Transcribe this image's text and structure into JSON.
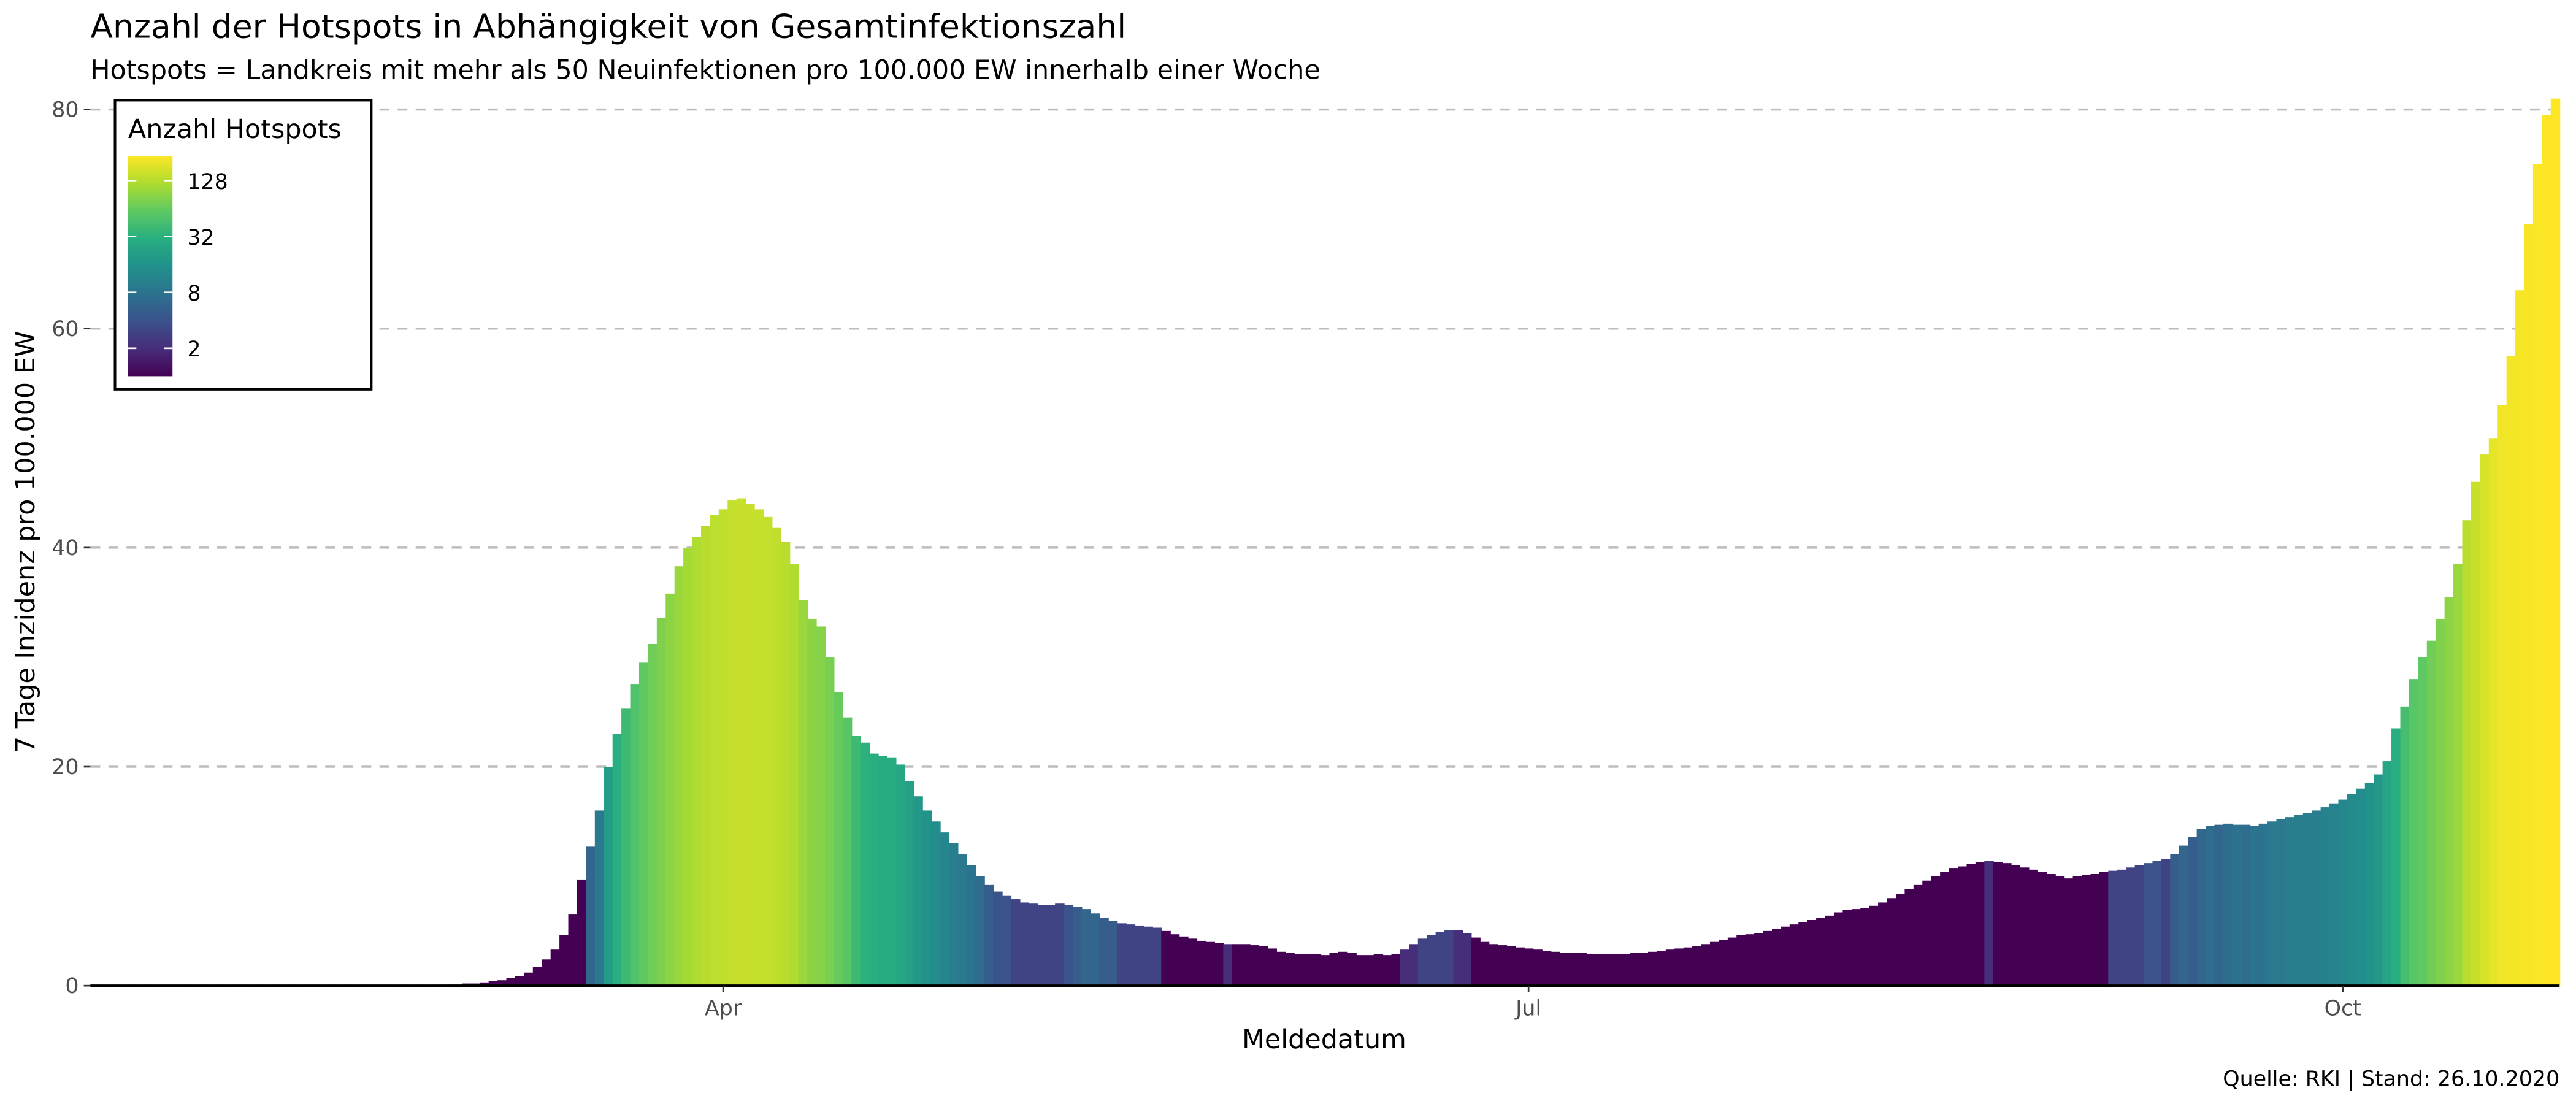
{
  "chart_data": {
    "type": "bar",
    "title": "Anzahl der Hotspots in Abhängigkeit von Gesamtinfektionszahl",
    "subtitle": "Hotspots = Landkreis mit mehr als 50 Neuinfektionen pro 100.000 EW innerhalb einer Woche",
    "x_label": "Meldedatum",
    "y_label": "7 Tage Inzidenz pro 100.000 EW",
    "caption": "Quelle: RKI | Stand: 26.10.2020",
    "legend_title": "Anzahl Hotspots",
    "categories": [
      null,
      null,
      null,
      null,
      null,
      null,
      null,
      null,
      null,
      null,
      null,
      null,
      null,
      null,
      null,
      null,
      null,
      null,
      null,
      null,
      null,
      null,
      null,
      null,
      null,
      null,
      null,
      null,
      null,
      null,
      null,
      null,
      null,
      null,
      null,
      null,
      null,
      null,
      null,
      null,
      null,
      null,
      null,
      null,
      null,
      null,
      null,
      null,
      null,
      null,
      null,
      null,
      null,
      null,
      null,
      null,
      null,
      null,
      null,
      null,
      null,
      null,
      null,
      null,
      null,
      null,
      null,
      null,
      null,
      null,
      null,
      "Apr",
      null,
      null,
      null,
      null,
      null,
      null,
      null,
      null,
      null,
      null,
      null,
      null,
      null,
      null,
      null,
      null,
      null,
      null,
      null,
      null,
      null,
      null,
      null,
      null,
      null,
      null,
      null,
      null,
      null,
      null,
      null,
      null,
      null,
      null,
      null,
      null,
      null,
      null,
      null,
      null,
      null,
      null,
      null,
      null,
      null,
      null,
      null,
      null,
      null,
      null,
      null,
      null,
      null,
      null,
      null,
      null,
      null,
      null,
      null,
      null,
      null,
      null,
      null,
      null,
      null,
      null,
      null,
      null,
      null,
      null,
      null,
      null,
      null,
      null,
      null,
      null,
      null,
      null,
      null,
      null,
      null,
      null,
      null,
      null,
      null,
      null,
      null,
      null,
      null,
      null,
      "Jul",
      null,
      null,
      null,
      null,
      null,
      null,
      null,
      null,
      null,
      null,
      null,
      null,
      null,
      null,
      null,
      null,
      null,
      null,
      null,
      null,
      null,
      null,
      null,
      null,
      null,
      null,
      null,
      null,
      null,
      null,
      null,
      null,
      null,
      null,
      null,
      null,
      null,
      null,
      null,
      null,
      null,
      null,
      null,
      null,
      null,
      null,
      null,
      null,
      null,
      null,
      null,
      null,
      null,
      null,
      null,
      null,
      null,
      null,
      null,
      null,
      null,
      null,
      null,
      null,
      null,
      null,
      null,
      null,
      null,
      null,
      null,
      null,
      null,
      null,
      null,
      null,
      null,
      null,
      null,
      null,
      null,
      null,
      null,
      null,
      null,
      null,
      null,
      null,
      null,
      null,
      null,
      "Oct",
      null,
      null,
      null,
      null,
      null,
      null,
      null,
      null,
      null,
      null,
      null,
      null,
      null,
      null,
      null,
      null,
      null,
      null,
      null,
      null,
      null,
      null,
      null,
      null
    ],
    "values": [
      0,
      0,
      0,
      0,
      0,
      0,
      0,
      0,
      0,
      0,
      0,
      0,
      0,
      0,
      0,
      0,
      0,
      0,
      0,
      0,
      0,
      0,
      0,
      0,
      0,
      0,
      0,
      0,
      0,
      0,
      0,
      0,
      0,
      0,
      0,
      0,
      0,
      0,
      0,
      0,
      0.1,
      0.1,
      0.2,
      0.2,
      0.3,
      0.4,
      0.5,
      0.7,
      0.9,
      1.2,
      1.7,
      2.4,
      3.3,
      4.6,
      6.5,
      9.7,
      12.7,
      16,
      20,
      23,
      25.3,
      27.5,
      29.5,
      31.2,
      33.6,
      35.8,
      38.3,
      40,
      41,
      42,
      43,
      43.5,
      44.3,
      44.5,
      44,
      43.5,
      42.8,
      41.8,
      40.5,
      38.5,
      35.2,
      33.5,
      32.8,
      30,
      26.8,
      24.5,
      22.8,
      22.2,
      21.2,
      21,
      20.8,
      20.2,
      18.7,
      17.3,
      16,
      15,
      14,
      13,
      12,
      11,
      10,
      9.2,
      8.6,
      8.2,
      7.9,
      7.6,
      7.5,
      7.4,
      7.4,
      7.5,
      7.4,
      7.2,
      7,
      6.6,
      6.2,
      5.9,
      5.7,
      5.6,
      5.5,
      5.4,
      5.3,
      5,
      4.7,
      4.5,
      4.3,
      4.1,
      4,
      3.9,
      3.8,
      3.8,
      3.8,
      3.7,
      3.6,
      3.4,
      3.1,
      3,
      2.9,
      2.9,
      2.9,
      2.8,
      3,
      3.1,
      3,
      2.8,
      2.8,
      2.9,
      2.8,
      2.9,
      3.3,
      3.8,
      4.3,
      4.6,
      4.9,
      5.1,
      5.1,
      4.8,
      4.4,
      4,
      3.8,
      3.7,
      3.6,
      3.5,
      3.4,
      3.3,
      3.2,
      3.1,
      3,
      3,
      3,
      2.9,
      2.9,
      2.9,
      2.9,
      2.9,
      3,
      3,
      3.1,
      3.2,
      3.3,
      3.4,
      3.5,
      3.6,
      3.8,
      4,
      4.2,
      4.4,
      4.6,
      4.7,
      4.8,
      5,
      5.2,
      5.4,
      5.6,
      5.8,
      6,
      6.2,
      6.4,
      6.7,
      6.9,
      7,
      7.1,
      7.3,
      7.6,
      8,
      8.4,
      8.8,
      9.2,
      9.6,
      10,
      10.4,
      10.7,
      10.9,
      11.1,
      11.3,
      11.4,
      11.3,
      11.2,
      11,
      10.8,
      10.6,
      10.4,
      10.2,
      10,
      9.8,
      10,
      10.1,
      10.2,
      10.4,
      10.5,
      10.6,
      10.8,
      11,
      11.2,
      11.4,
      11.6,
      12,
      12.8,
      13.6,
      14.3,
      14.6,
      14.7,
      14.8,
      14.7,
      14.7,
      14.6,
      14.8,
      15,
      15.2,
      15.4,
      15.6,
      15.8,
      16,
      16.3,
      16.6,
      17,
      17.5,
      18,
      18.5,
      19.3,
      20.5,
      23.5,
      25.5,
      28,
      30,
      31.5,
      33.5,
      35.5,
      38.5,
      42.5,
      46,
      48.5,
      50,
      53,
      57.5,
      63.5,
      69.5,
      75,
      79.5,
      81
    ],
    "color_values": [
      0,
      0,
      0,
      0,
      0,
      0,
      0,
      0,
      0,
      0,
      0,
      0,
      0,
      0,
      0,
      0,
      0,
      0,
      0,
      0,
      0,
      0,
      0,
      0,
      0,
      0,
      0,
      0,
      0,
      0,
      0,
      0,
      0,
      0,
      0,
      0,
      0,
      0,
      0,
      0,
      0,
      0,
      0,
      0,
      0,
      0,
      0,
      0,
      0,
      0,
      0,
      0,
      0,
      0,
      0,
      1,
      6,
      9,
      20,
      30,
      40,
      50,
      60,
      70,
      80,
      90,
      100,
      110,
      120,
      130,
      135,
      140,
      145,
      150,
      150,
      148,
      145,
      140,
      130,
      120,
      100,
      90,
      85,
      75,
      65,
      55,
      40,
      32,
      30,
      28,
      28,
      26,
      22,
      18,
      16,
      14,
      12,
      10,
      9,
      8,
      7,
      5,
      4,
      4,
      3,
      3,
      3,
      3,
      3,
      3,
      4,
      5,
      6,
      6,
      5,
      5,
      3,
      3,
      3,
      3,
      3,
      1,
      1,
      0,
      0,
      0,
      0,
      0,
      2,
      0,
      0,
      0,
      0,
      0,
      0,
      0,
      0,
      0,
      0,
      0,
      0,
      0,
      0,
      0,
      0,
      0,
      0,
      0,
      2,
      2,
      3,
      3,
      3,
      3,
      2,
      2,
      0,
      0,
      0,
      0,
      0,
      0,
      0,
      0,
      0,
      0,
      0,
      0,
      0,
      0,
      0,
      0,
      0,
      0,
      0,
      0,
      0,
      0,
      0,
      0,
      0,
      0,
      0,
      0,
      0,
      0,
      0,
      0,
      0,
      0,
      0,
      0,
      0,
      0,
      0,
      0,
      0,
      0,
      0,
      0,
      0,
      0,
      0,
      0,
      0,
      0,
      0,
      0,
      0,
      0,
      0,
      0,
      0,
      0,
      2,
      0,
      0,
      0,
      0,
      0,
      0,
      0,
      0,
      0,
      0,
      0,
      0,
      0,
      3,
      3,
      3,
      3,
      4,
      4,
      3,
      5,
      6,
      5,
      6,
      7,
      6,
      7,
      8,
      7,
      8,
      8,
      9,
      9,
      10,
      10,
      10,
      10,
      11,
      11,
      12,
      13,
      14,
      16,
      18,
      24,
      30,
      45,
      55,
      60,
      70,
      80,
      90,
      100,
      130,
      150,
      170,
      190,
      210,
      215,
      220,
      225,
      230,
      235,
      235
    ],
    "color_scale": "log",
    "colorlim": [
      1,
      235
    ],
    "color_ticks": [
      2,
      8,
      32,
      128
    ],
    "colormap": [
      "#440154",
      "#472d7b",
      "#3b528b",
      "#2c728e",
      "#21918c",
      "#28ae80",
      "#5ec962",
      "#addc30",
      "#fde725"
    ],
    "ylim": [
      0,
      81
    ],
    "yticks": [
      0,
      20,
      40,
      60,
      80
    ],
    "grid": true,
    "legend_position": "top-left"
  }
}
